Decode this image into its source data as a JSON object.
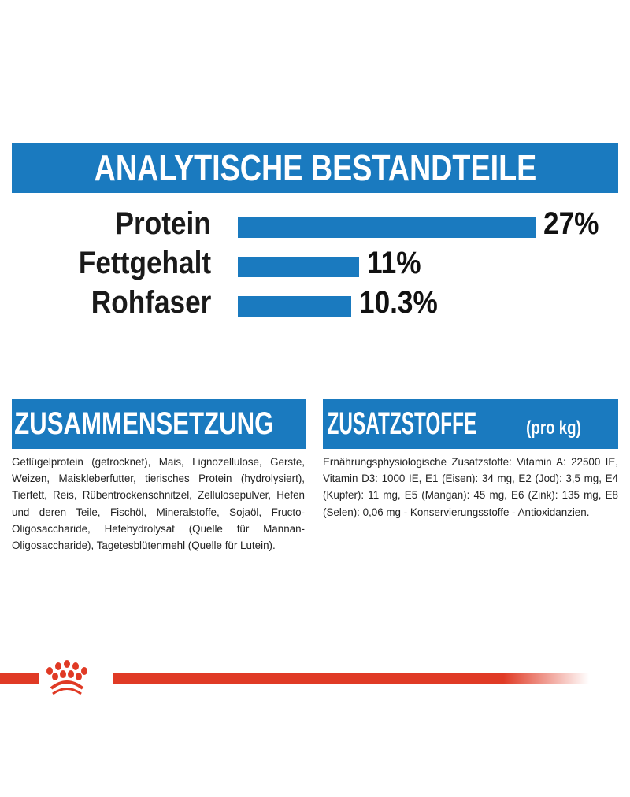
{
  "chart_data": {
    "type": "bar",
    "orientation": "horizontal",
    "title": "ANALYTISCHE BESTANDTEILE",
    "categories": [
      "Protein",
      "Fettgehalt",
      "Rohfaser"
    ],
    "values": [
      27,
      11,
      10.3
    ],
    "value_labels": [
      "27%",
      "11%",
      "10.3%"
    ],
    "unit": "%",
    "grid": false,
    "bar_color": "#1a7abf"
  },
  "composition": {
    "heading": "ZUSAMMENSETZUNG",
    "text": "Geflügelprotein (getrocknet), Mais, Lignozellulose, Gerste, Weizen, Maiskleberfutter, tierisches Protein (hydrolysiert), Tierfett, Reis, Rübentrockenschnitzel, Zellulosepulver, Hefen und deren Teile, Fischöl, Mineralstoffe, Sojaöl, Fructo-Oligosaccharide, Hefehydrolysat (Quelle für Mannan-Oligosaccharide), Tagetesblütenmehl (Quelle für Lutein)."
  },
  "additives": {
    "heading": "ZUSATZSTOFFE",
    "heading_suffix": "(pro kg)",
    "text": "Ernährungsphysiologische Zusatzstoffe: Vitamin A: 22500 IE, Vitamin D3: 1000 IE, E1 (Eisen): 34 mg, E2 (Jod): 3,5 mg, E4 (Kupfer): 11 mg, E5 (Mangan): 45 mg, E6 (Zink): 135 mg, E8 (Selen): 0,06 mg - Konservierungsstoffe - Antioxidanzien."
  },
  "colors": {
    "brand_blue": "#1a7abf",
    "brand_red": "#e03a25"
  },
  "logo": {
    "icon": "royal-canin-crown-icon"
  }
}
